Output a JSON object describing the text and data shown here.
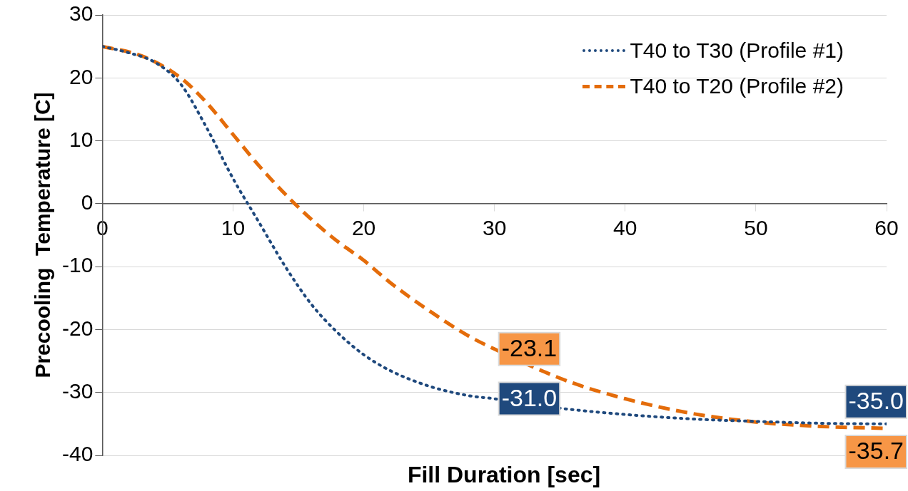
{
  "chart_data": {
    "type": "line",
    "xlabel": "Fill Duration [sec]",
    "ylabel": "Precooling  Temperature [C]",
    "xlim": [
      0,
      60
    ],
    "xticks": [
      0,
      10,
      20,
      30,
      40,
      50,
      60
    ],
    "ylim": [
      -40,
      30
    ],
    "yticks": [
      -40,
      -30,
      -20,
      -10,
      0,
      10,
      20,
      30
    ],
    "grid": "y",
    "legend": "top right",
    "series": [
      {
        "name": "T40 to T30 (Profile #1)",
        "color": "#1f497d",
        "line_style": "dotted",
        "x": [
          0,
          2,
          4,
          6,
          8,
          10,
          12,
          14,
          16,
          18,
          20,
          22,
          25,
          28,
          30,
          35,
          40,
          45,
          50,
          55,
          60
        ],
        "values": [
          25,
          24,
          22.5,
          19,
          12,
          4,
          -3,
          -10,
          -16,
          -20.5,
          -24,
          -26.5,
          -29,
          -30.5,
          -31.0,
          -32.5,
          -33.5,
          -34.2,
          -34.6,
          -34.9,
          -35.0
        ],
        "value_labels": [
          null,
          null,
          null,
          null,
          null,
          null,
          null,
          null,
          null,
          null,
          null,
          null,
          null,
          null,
          "-31.0",
          null,
          null,
          null,
          null,
          null,
          "-35.0"
        ]
      },
      {
        "name": "T40 to T20 (Profile #2)",
        "color": "#e46c0a",
        "line_style": "dashed",
        "x": [
          0,
          3,
          6,
          8,
          10,
          12,
          14,
          16,
          18,
          20,
          22,
          25,
          28,
          30,
          33,
          36,
          40,
          45,
          50,
          55,
          60
        ],
        "values": [
          25,
          23.5,
          20,
          16,
          11,
          6,
          1.5,
          -2.5,
          -6,
          -9,
          -12.5,
          -17,
          -21,
          -23.1,
          -26,
          -28.5,
          -31,
          -33.3,
          -34.7,
          -35.4,
          -35.7
        ],
        "value_labels": [
          null,
          null,
          null,
          null,
          null,
          null,
          null,
          null,
          null,
          null,
          null,
          null,
          null,
          "-23.1",
          null,
          null,
          null,
          null,
          null,
          null,
          "-35.7"
        ]
      }
    ]
  }
}
